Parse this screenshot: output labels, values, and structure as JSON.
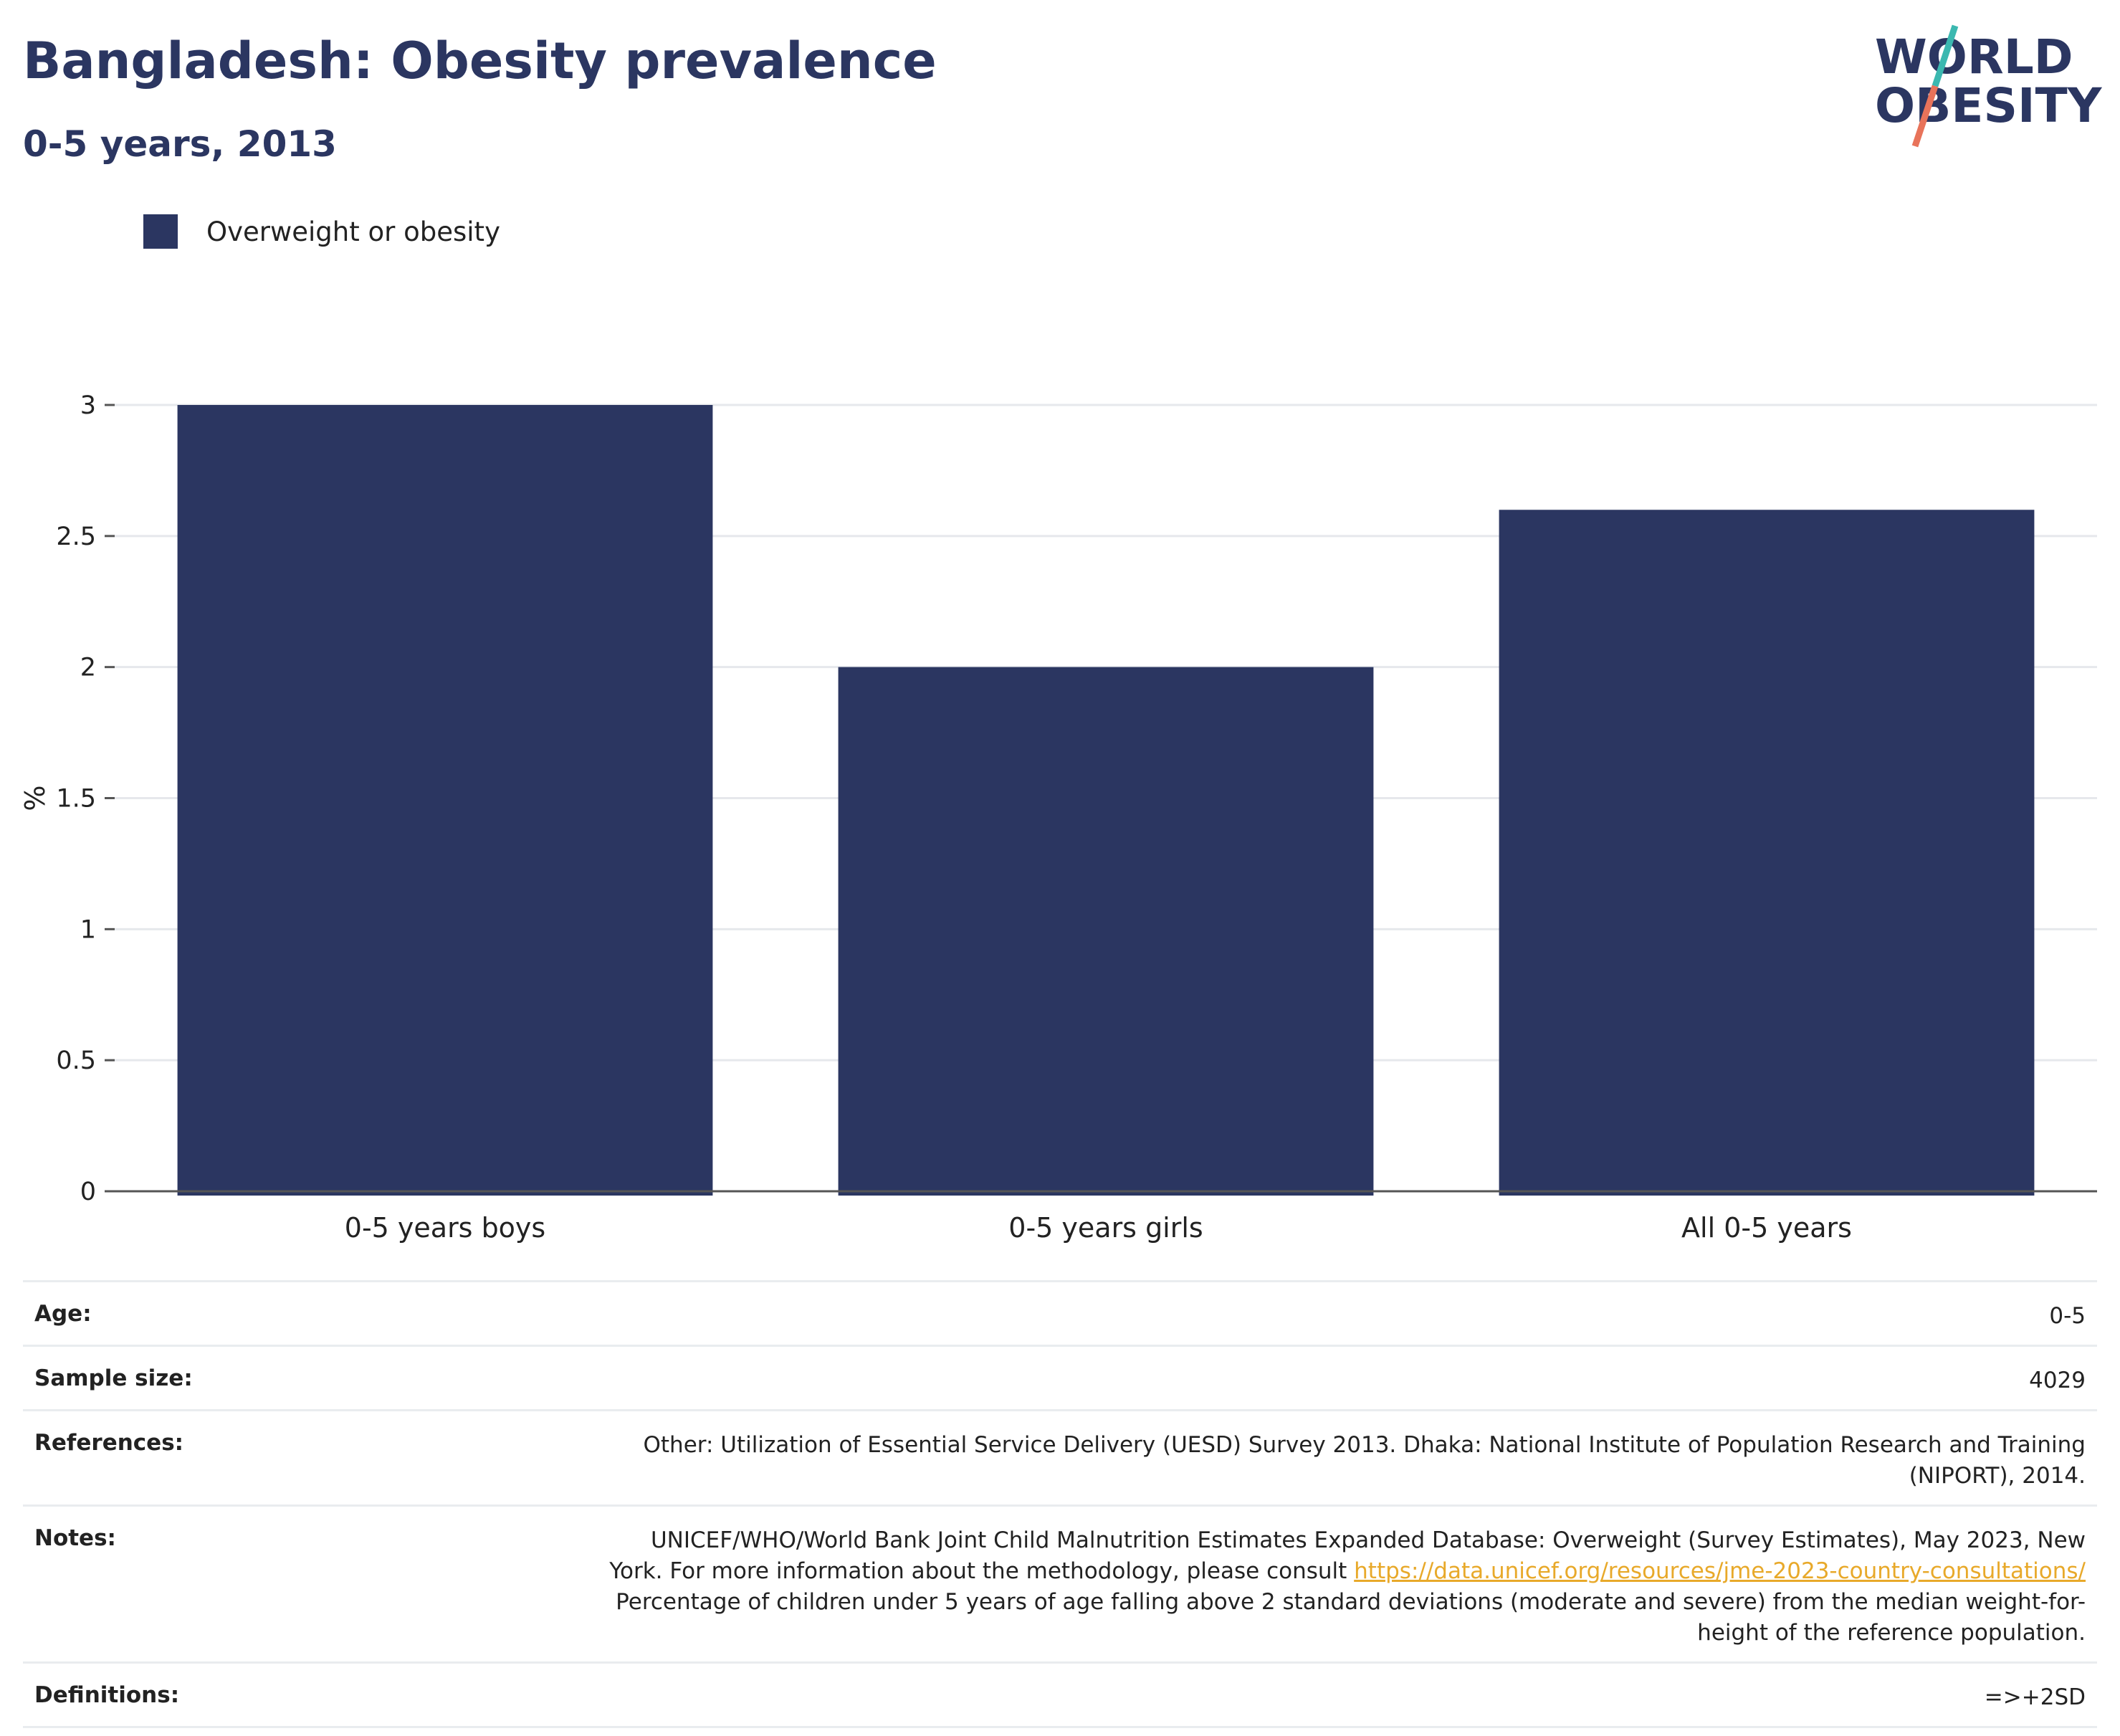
{
  "header": {
    "title": "Bangladesh: Obesity prevalence",
    "subtitle": "0-5 years, 2013"
  },
  "logo": {
    "line1": "WORLD",
    "line2": "OBESITY",
    "colors": {
      "text": "#2b3661",
      "slash_top": "#3bb8b0",
      "slash_bottom": "#e8735a"
    }
  },
  "legend": {
    "items": [
      {
        "label": "Overweight or obesity",
        "color": "#2b3661"
      }
    ]
  },
  "chart_data": {
    "type": "bar",
    "categories": [
      "0-5 years boys",
      "0-5 years girls",
      "All 0-5 years"
    ],
    "series": [
      {
        "name": "Overweight or obesity",
        "values": [
          3.0,
          2.0,
          2.6
        ],
        "color": "#2b3661"
      }
    ],
    "title": "Bangladesh: Obesity prevalence",
    "subtitle": "0-5 years, 2013",
    "xlabel": "",
    "ylabel": "%",
    "ylim": [
      0,
      3
    ],
    "yticks": [
      "0",
      "0.5",
      "1",
      "1.5",
      "2",
      "2.5",
      "3"
    ],
    "grid": true,
    "legend_position": "top-left"
  },
  "info": {
    "age_label": "Age:",
    "age_value": "0-5",
    "sample_label": "Sample size:",
    "sample_value": "4029",
    "references_label": "References:",
    "references_line1": "Other: Utilization of Essential Service Delivery (UESD) Survey 2013. Dhaka: National Institute of Population Research and Training",
    "references_line2": "(NIPORT), 2014.",
    "notes_label": "Notes:",
    "notes_line1": "UNICEF/WHO/World Bank Joint Child Malnutrition Estimates Expanded Database: Overweight (Survey Estimates), May 2023, New",
    "notes_line2_prefix": "York. For more information about the methodology, please consult ",
    "notes_link": "https://data.unicef.org/resources/jme-2023-country-consultations/",
    "notes_line3": "Percentage of children under 5 years of age falling above 2 standard deviations (moderate and severe) from the median weight-for-",
    "notes_line4": "height of the reference population.",
    "definitions_label": "Definitions:",
    "definitions_value": "=>+2SD"
  }
}
